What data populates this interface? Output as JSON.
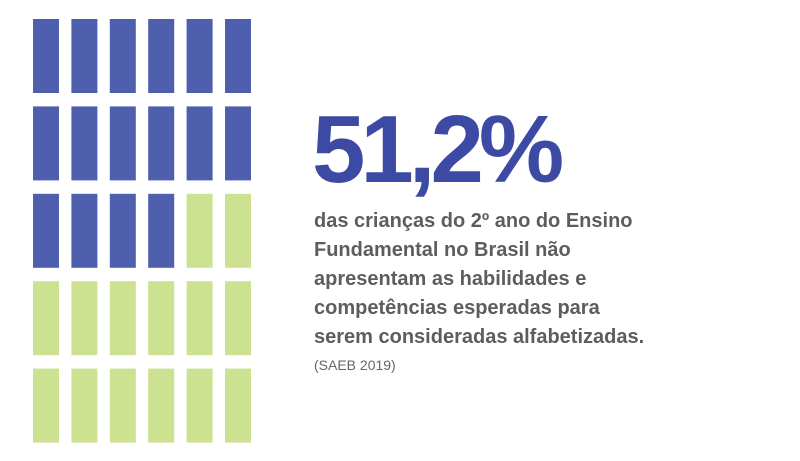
{
  "chart_data": {
    "type": "waffle",
    "total": 30,
    "highlighted": 16,
    "value_label": "51,2%",
    "description_lines": [
      "das crianças do 2º ano do Ensino",
      "Fundamental no Brasil não",
      "apresentam as habilidades e",
      "competências esperadas para",
      "serem consideradas alfabetizadas."
    ],
    "source": "(SAEB 2019)",
    "colors": {
      "highlighted": "#4e5fae",
      "remaining": "#cde290"
    }
  }
}
